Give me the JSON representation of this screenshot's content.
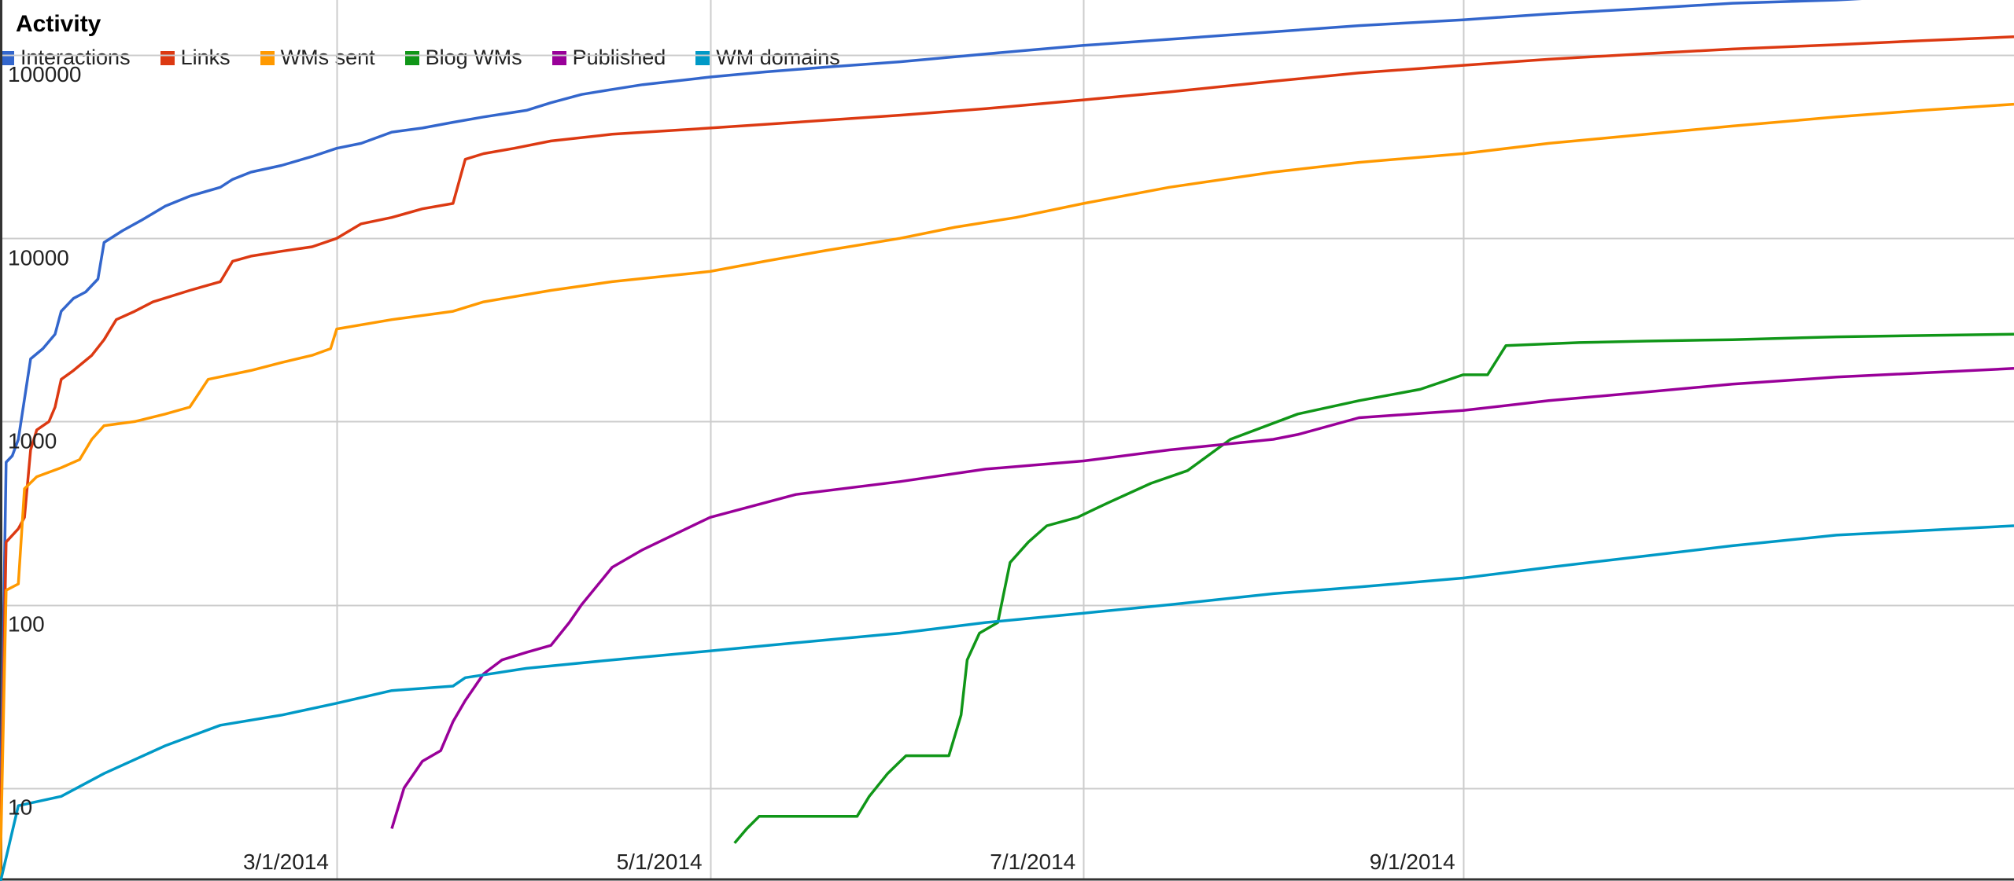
{
  "chart_data": {
    "type": "line",
    "title": "Activity",
    "y_scale": "log",
    "ylim": [
      3.2,
      200000
    ],
    "y_ticks": [
      10,
      100,
      1000,
      10000,
      100000
    ],
    "y_tick_labels": [
      "10",
      "100",
      "1000",
      "10000",
      "100000"
    ],
    "xlim": [
      "2014-01-05",
      "2014-11-30"
    ],
    "x_ticks": [
      "2014-03-01",
      "2014-05-01",
      "2014-07-01",
      "2014-09-01"
    ],
    "x_tick_labels": [
      "3/1/2014",
      "5/1/2014",
      "7/1/2014",
      "9/1/2014"
    ],
    "grid": true,
    "legend_position": "top-left",
    "series": [
      {
        "name": "Interactions",
        "color": "#3366cc",
        "points": [
          [
            "2014-01-05",
            5
          ],
          [
            "2014-01-06",
            600
          ],
          [
            "2014-01-07",
            650
          ],
          [
            "2014-01-08",
            800
          ],
          [
            "2014-01-10",
            2200
          ],
          [
            "2014-01-12",
            2500
          ],
          [
            "2014-01-14",
            3000
          ],
          [
            "2014-01-15",
            4000
          ],
          [
            "2014-01-17",
            4700
          ],
          [
            "2014-01-19",
            5100
          ],
          [
            "2014-01-21",
            6000
          ],
          [
            "2014-01-22",
            9500
          ],
          [
            "2014-01-25",
            11000
          ],
          [
            "2014-01-28",
            12500
          ],
          [
            "2014-02-01",
            15000
          ],
          [
            "2014-02-05",
            17000
          ],
          [
            "2014-02-10",
            19000
          ],
          [
            "2014-02-12",
            21000
          ],
          [
            "2014-02-15",
            23000
          ],
          [
            "2014-02-20",
            25000
          ],
          [
            "2014-02-25",
            28000
          ],
          [
            "2014-03-01",
            31000
          ],
          [
            "2014-03-05",
            33000
          ],
          [
            "2014-03-10",
            38000
          ],
          [
            "2014-03-15",
            40000
          ],
          [
            "2014-03-20",
            43000
          ],
          [
            "2014-03-25",
            46000
          ],
          [
            "2014-04-01",
            50000
          ],
          [
            "2014-04-05",
            55000
          ],
          [
            "2014-04-10",
            61000
          ],
          [
            "2014-04-15",
            65000
          ],
          [
            "2014-04-20",
            69000
          ],
          [
            "2014-04-25",
            72000
          ],
          [
            "2014-05-01",
            76000
          ],
          [
            "2014-05-10",
            81000
          ],
          [
            "2014-05-20",
            86000
          ],
          [
            "2014-06-01",
            92000
          ],
          [
            "2014-06-10",
            98000
          ],
          [
            "2014-06-20",
            105000
          ],
          [
            "2014-07-01",
            113000
          ],
          [
            "2014-07-15",
            122000
          ],
          [
            "2014-08-01",
            134000
          ],
          [
            "2014-08-15",
            145000
          ],
          [
            "2014-09-01",
            156000
          ],
          [
            "2014-09-15",
            168000
          ],
          [
            "2014-10-01",
            180000
          ],
          [
            "2014-10-15",
            192000
          ],
          [
            "2014-11-01",
            200000
          ],
          [
            "2014-11-15",
            212000
          ],
          [
            "2014-11-30",
            225000
          ]
        ]
      },
      {
        "name": "Links",
        "color": "#dc3912",
        "points": [
          [
            "2014-01-05",
            4
          ],
          [
            "2014-01-06",
            220
          ],
          [
            "2014-01-08",
            260
          ],
          [
            "2014-01-09",
            300
          ],
          [
            "2014-01-10",
            700
          ],
          [
            "2014-01-11",
            900
          ],
          [
            "2014-01-13",
            1000
          ],
          [
            "2014-01-14",
            1200
          ],
          [
            "2014-01-15",
            1700
          ],
          [
            "2014-01-17",
            1900
          ],
          [
            "2014-01-20",
            2300
          ],
          [
            "2014-01-22",
            2800
          ],
          [
            "2014-01-24",
            3600
          ],
          [
            "2014-01-27",
            4000
          ],
          [
            "2014-01-30",
            4500
          ],
          [
            "2014-02-05",
            5200
          ],
          [
            "2014-02-10",
            5800
          ],
          [
            "2014-02-12",
            7500
          ],
          [
            "2014-02-15",
            8000
          ],
          [
            "2014-02-20",
            8500
          ],
          [
            "2014-02-25",
            9000
          ],
          [
            "2014-03-01",
            10000
          ],
          [
            "2014-03-05",
            12000
          ],
          [
            "2014-03-10",
            13000
          ],
          [
            "2014-03-15",
            14500
          ],
          [
            "2014-03-20",
            15500
          ],
          [
            "2014-03-22",
            27000
          ],
          [
            "2014-03-25",
            29000
          ],
          [
            "2014-03-30",
            31000
          ],
          [
            "2014-04-05",
            34000
          ],
          [
            "2014-04-15",
            37000
          ],
          [
            "2014-05-01",
            40000
          ],
          [
            "2014-05-15",
            43000
          ],
          [
            "2014-06-01",
            47000
          ],
          [
            "2014-06-15",
            51000
          ],
          [
            "2014-07-01",
            57000
          ],
          [
            "2014-07-15",
            63000
          ],
          [
            "2014-08-01",
            72000
          ],
          [
            "2014-08-15",
            80000
          ],
          [
            "2014-09-01",
            88000
          ],
          [
            "2014-09-15",
            95000
          ],
          [
            "2014-10-01",
            102000
          ],
          [
            "2014-10-15",
            108000
          ],
          [
            "2014-11-01",
            114000
          ],
          [
            "2014-11-15",
            120000
          ],
          [
            "2014-11-30",
            126000
          ]
        ]
      },
      {
        "name": "WMs sent",
        "color": "#ff9900",
        "points": [
          [
            "2014-01-05",
            3
          ],
          [
            "2014-01-06",
            120
          ],
          [
            "2014-01-08",
            130
          ],
          [
            "2014-01-09",
            430
          ],
          [
            "2014-01-11",
            500
          ],
          [
            "2014-01-15",
            560
          ],
          [
            "2014-01-18",
            620
          ],
          [
            "2014-01-20",
            800
          ],
          [
            "2014-01-22",
            950
          ],
          [
            "2014-01-27",
            1000
          ],
          [
            "2014-02-01",
            1100
          ],
          [
            "2014-02-05",
            1200
          ],
          [
            "2014-02-08",
            1700
          ],
          [
            "2014-02-15",
            1900
          ],
          [
            "2014-02-20",
            2100
          ],
          [
            "2014-02-25",
            2300
          ],
          [
            "2014-02-28",
            2500
          ],
          [
            "2014-03-01",
            3200
          ],
          [
            "2014-03-10",
            3600
          ],
          [
            "2014-03-20",
            4000
          ],
          [
            "2014-03-25",
            4500
          ],
          [
            "2014-04-05",
            5200
          ],
          [
            "2014-04-15",
            5800
          ],
          [
            "2014-05-01",
            6600
          ],
          [
            "2014-05-10",
            7500
          ],
          [
            "2014-05-20",
            8600
          ],
          [
            "2014-06-01",
            10000
          ],
          [
            "2014-06-10",
            11500
          ],
          [
            "2014-06-20",
            13000
          ],
          [
            "2014-07-01",
            15500
          ],
          [
            "2014-07-15",
            19000
          ],
          [
            "2014-08-01",
            23000
          ],
          [
            "2014-08-15",
            26000
          ],
          [
            "2014-09-01",
            29000
          ],
          [
            "2014-09-15",
            33000
          ],
          [
            "2014-10-01",
            37000
          ],
          [
            "2014-10-15",
            41000
          ],
          [
            "2014-11-01",
            46000
          ],
          [
            "2014-11-15",
            50000
          ],
          [
            "2014-11-30",
            54000
          ]
        ]
      },
      {
        "name": "Blog WMs",
        "color": "#109618",
        "points": [
          [
            "2014-05-05",
            5
          ],
          [
            "2014-05-07",
            6
          ],
          [
            "2014-05-09",
            7
          ],
          [
            "2014-05-25",
            7
          ],
          [
            "2014-05-27",
            9
          ],
          [
            "2014-05-30",
            12
          ],
          [
            "2014-06-02",
            15
          ],
          [
            "2014-06-09",
            15
          ],
          [
            "2014-06-11",
            25
          ],
          [
            "2014-06-12",
            50
          ],
          [
            "2014-06-14",
            70
          ],
          [
            "2014-06-17",
            80
          ],
          [
            "2014-06-19",
            170
          ],
          [
            "2014-06-22",
            220
          ],
          [
            "2014-06-25",
            270
          ],
          [
            "2014-06-30",
            300
          ],
          [
            "2014-07-05",
            360
          ],
          [
            "2014-07-12",
            460
          ],
          [
            "2014-07-18",
            540
          ],
          [
            "2014-07-25",
            800
          ],
          [
            "2014-08-05",
            1100
          ],
          [
            "2014-08-15",
            1300
          ],
          [
            "2014-08-25",
            1500
          ],
          [
            "2014-09-01",
            1800
          ],
          [
            "2014-09-05",
            1800
          ],
          [
            "2014-09-08",
            2600
          ],
          [
            "2014-09-20",
            2700
          ],
          [
            "2014-10-01",
            2750
          ],
          [
            "2014-10-15",
            2800
          ],
          [
            "2014-11-01",
            2900
          ],
          [
            "2014-11-30",
            3000
          ]
        ]
      },
      {
        "name": "Published",
        "color": "#990099",
        "points": [
          [
            "2014-03-10",
            6
          ],
          [
            "2014-03-12",
            10
          ],
          [
            "2014-03-15",
            14
          ],
          [
            "2014-03-18",
            16
          ],
          [
            "2014-03-20",
            23
          ],
          [
            "2014-03-22",
            30
          ],
          [
            "2014-03-25",
            42
          ],
          [
            "2014-03-28",
            50
          ],
          [
            "2014-04-01",
            55
          ],
          [
            "2014-04-05",
            60
          ],
          [
            "2014-04-08",
            80
          ],
          [
            "2014-04-10",
            100
          ],
          [
            "2014-04-15",
            160
          ],
          [
            "2014-04-20",
            200
          ],
          [
            "2014-05-01",
            300
          ],
          [
            "2014-05-15",
            400
          ],
          [
            "2014-06-01",
            470
          ],
          [
            "2014-06-15",
            550
          ],
          [
            "2014-07-01",
            610
          ],
          [
            "2014-07-15",
            700
          ],
          [
            "2014-08-01",
            800
          ],
          [
            "2014-08-05",
            850
          ],
          [
            "2014-08-15",
            1050
          ],
          [
            "2014-09-01",
            1150
          ],
          [
            "2014-09-15",
            1300
          ],
          [
            "2014-10-01",
            1450
          ],
          [
            "2014-10-15",
            1600
          ],
          [
            "2014-11-01",
            1750
          ],
          [
            "2014-11-30",
            1950
          ]
        ]
      },
      {
        "name": "WM domains",
        "color": "#0099c6",
        "points": [
          [
            "2014-01-05",
            3
          ],
          [
            "2014-01-08",
            8
          ],
          [
            "2014-01-15",
            9
          ],
          [
            "2014-01-22",
            12
          ],
          [
            "2014-02-01",
            17
          ],
          [
            "2014-02-10",
            22
          ],
          [
            "2014-02-20",
            25
          ],
          [
            "2014-03-01",
            29
          ],
          [
            "2014-03-10",
            34
          ],
          [
            "2014-03-20",
            36
          ],
          [
            "2014-03-22",
            40
          ],
          [
            "2014-04-01",
            45
          ],
          [
            "2014-04-15",
            50
          ],
          [
            "2014-05-01",
            56
          ],
          [
            "2014-05-15",
            62
          ],
          [
            "2014-06-01",
            70
          ],
          [
            "2014-06-15",
            80
          ],
          [
            "2014-07-01",
            90
          ],
          [
            "2014-07-15",
            100
          ],
          [
            "2014-08-01",
            115
          ],
          [
            "2014-08-15",
            125
          ],
          [
            "2014-09-01",
            140
          ],
          [
            "2014-09-15",
            160
          ],
          [
            "2014-10-01",
            185
          ],
          [
            "2014-10-15",
            210
          ],
          [
            "2014-11-01",
            240
          ],
          [
            "2014-11-30",
            270
          ]
        ]
      }
    ]
  }
}
